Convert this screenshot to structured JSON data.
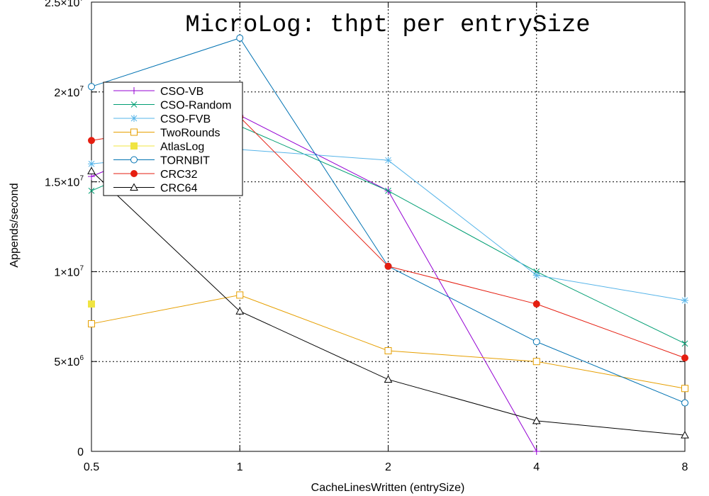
{
  "chart_data": {
    "type": "line",
    "title": "MicroLog: thpt per entrySize",
    "xlabel": "CacheLinesWritten (entrySize)",
    "ylabel": "Appends/second",
    "x": [
      "0.5",
      "1",
      "2",
      "4",
      "8"
    ],
    "x_scale": "log2",
    "ylim": [
      0,
      25000000
    ],
    "y_ticks": [
      {
        "value": 0,
        "mant": "0",
        "exp": ""
      },
      {
        "value": 5000000,
        "mant": "5×10",
        "exp": "6"
      },
      {
        "value": 10000000,
        "mant": "1×10",
        "exp": "7"
      },
      {
        "value": 15000000,
        "mant": "1.5×10",
        "exp": "7"
      },
      {
        "value": 20000000,
        "mant": "2×10",
        "exp": "7"
      },
      {
        "value": 25000000,
        "mant": "2.5×10",
        "exp": "7"
      }
    ],
    "grid": true,
    "legend_position": "top-left",
    "series": [
      {
        "name": "CSO-VB",
        "color": "#9400d3",
        "marker": "plus",
        "values": [
          15300000,
          18700000,
          14500000,
          0,
          null
        ]
      },
      {
        "name": "CSO-Random",
        "color": "#009e73",
        "marker": "x",
        "values": [
          14500000,
          18100000,
          14500000,
          10000000,
          6000000
        ]
      },
      {
        "name": "CSO-FVB",
        "color": "#56b4e9",
        "marker": "star",
        "values": [
          16000000,
          16800000,
          16200000,
          9800000,
          8400000
        ]
      },
      {
        "name": "TwoRounds",
        "color": "#e69f00",
        "marker": "open-square",
        "values": [
          7100000,
          8700000,
          5600000,
          5000000,
          3500000
        ]
      },
      {
        "name": "AtlasLog",
        "color": "#f0e442",
        "marker": "filled-square",
        "values": [
          8200000,
          null,
          null,
          null,
          null
        ]
      },
      {
        "name": "TORNBIT",
        "color": "#0072b2",
        "marker": "open-circle",
        "values": [
          20300000,
          23000000,
          10300000,
          6100000,
          2700000
        ]
      },
      {
        "name": "CRC32",
        "color": "#e51e10",
        "marker": "filled-circle",
        "values": [
          17300000,
          18600000,
          10300000,
          8200000,
          5200000
        ]
      },
      {
        "name": "CRC64",
        "color": "#000000",
        "marker": "open-triangle",
        "values": [
          15600000,
          7800000,
          4000000,
          1700000,
          900000
        ]
      }
    ]
  }
}
